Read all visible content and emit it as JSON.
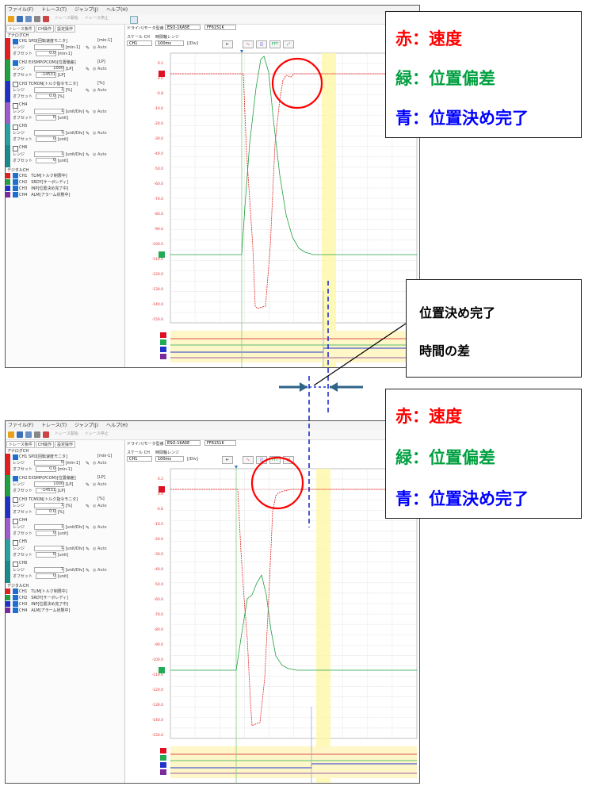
{
  "menu": [
    "ファイル(F)",
    "トレース(T)",
    "ジャンプ(J)",
    "ヘルプ(H)"
  ],
  "toolbar": {
    "start_trace": "トレース開始",
    "stop_trace": "トレース停止"
  },
  "left_panel": {
    "tabs": [
      "トレース条件",
      "CH操作",
      "設定操作"
    ],
    "analog_label": "アナログCH",
    "digital_label": "デジタルCH",
    "range_label": "レンジ",
    "offset_label": "オフセット",
    "auto_label": "Auto",
    "channels": [
      {
        "name": "CH1",
        "signal": "SPD[回転速度モニタ]",
        "unit": "[min-1]",
        "range": "0",
        "range_unit": "[min-1]",
        "offset": "0.0",
        "offset_unit": "[min-1]",
        "checked": true,
        "color": "#e02020"
      },
      {
        "name": "CH2",
        "signal": "EXSMP(PCOM)[位置偏差]",
        "unit": "[LP]",
        "range": "1000",
        "range_unit": "[LP]",
        "offset": "-14531",
        "offset_unit": "[LP]",
        "checked": true,
        "color": "#20a040"
      },
      {
        "name": "CH3",
        "signal": "TCMON[トルク指令モニタ]",
        "unit": "[%]",
        "range": "1",
        "range_unit": "[%]",
        "offset": "0.0",
        "offset_unit": "[%]",
        "checked": false,
        "color": "#2030c0"
      },
      {
        "name": "CH4",
        "signal": "",
        "unit": "",
        "range": "1",
        "range_unit": "[unit/Div]",
        "offset": "0",
        "offset_unit": "[unit]",
        "checked": false,
        "color": "#9a5ec6"
      },
      {
        "name": "CH5",
        "signal": "",
        "unit": "",
        "range": "1",
        "range_unit": "[unit/Div]",
        "offset": "0",
        "offset_unit": "[unit]",
        "checked": false,
        "color": "#2aa0a0"
      },
      {
        "name": "CH6",
        "signal": "",
        "unit": "",
        "range": "1",
        "range_unit": "[unit/Div]",
        "offset": "0",
        "offset_unit": "[unit]",
        "checked": false,
        "color": "#1b8a8a"
      }
    ],
    "digital": [
      {
        "name": "CH1",
        "signal": "TLIM[トルク制限中]",
        "color": "#e02020"
      },
      {
        "name": "CH2",
        "signal": "SRDY[サーボレディ]",
        "color": "#20a040"
      },
      {
        "name": "CH3",
        "signal": "INP[位置決め完了中]",
        "color": "#2030c0"
      },
      {
        "name": "CH4",
        "signal": "ALM[アラーム状態中]",
        "color": "#7a2a9a"
      }
    ]
  },
  "graph_header": {
    "drive_label": "ドライバ/モータ型番",
    "drive_value": "ESO-1KA5E",
    "motor_value": "FF6151K",
    "scale_label": "スケール CH",
    "scale_value": "CH1",
    "time_label": "時間軸レンジ",
    "time_value": "100ms",
    "time_unit": "[/Div]",
    "fft_label": "FFT"
  },
  "legend": [
    {
      "text": "赤：速度",
      "color": "#ff0000"
    },
    {
      "text": "緑：位置偏差",
      "color": "#00a040"
    },
    {
      "text": "青：位置決め完了",
      "color": "#0000ff"
    }
  ],
  "callout": [
    "位置決め完了",
    "時間の差"
  ],
  "chart_data": {
    "type": "line",
    "series": [
      {
        "name": "赤：速度",
        "color": "#ff0000"
      },
      {
        "name": "緑：位置偏差",
        "color": "#00a040"
      },
      {
        "name": "青：位置決め完了",
        "color": "#0000ff"
      }
    ],
    "yticks": [
      "0.2",
      "0.0",
      "-0.8",
      "-10.0",
      "-20.0",
      "-30.0",
      "-40.0",
      "-50.0",
      "-60.0",
      "-70.0",
      "-80.0",
      "-90.0",
      "-100.0",
      "-110.0",
      "-120.0",
      "-130.0",
      "-140.0",
      "-150.0"
    ]
  }
}
